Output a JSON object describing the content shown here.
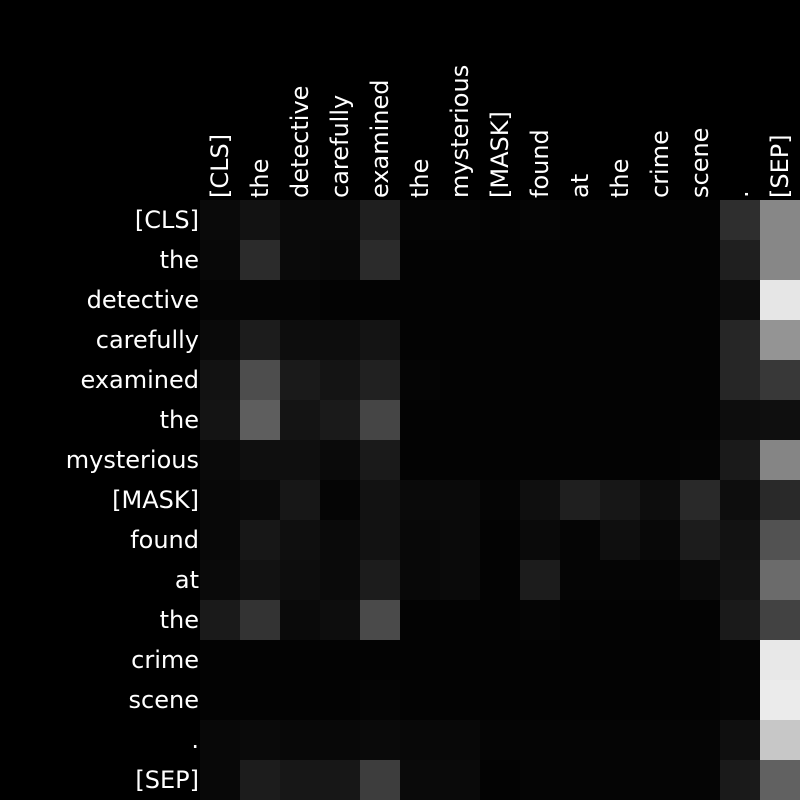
{
  "chart_data": {
    "type": "heatmap",
    "colormap": "grayscale",
    "value_range": [
      0,
      1
    ],
    "x_tokens": [
      "[CLS]",
      "the",
      "detective",
      "carefully",
      "examined",
      "the",
      "mysterious",
      "[MASK]",
      "found",
      "at",
      "the",
      "crime",
      "scene",
      ".",
      "[SEP]"
    ],
    "y_tokens": [
      "[CLS]",
      "the",
      "detective",
      "carefully",
      "examined",
      "the",
      "mysterious",
      "[MASK]",
      "found",
      "at",
      "the",
      "crime",
      "scene",
      ".",
      "[SEP]"
    ],
    "values": [
      [
        0.04,
        0.07,
        0.04,
        0.04,
        0.12,
        0.02,
        0.02,
        0.01,
        0.02,
        0.01,
        0.01,
        0.01,
        0.01,
        0.18,
        0.53
      ],
      [
        0.03,
        0.17,
        0.04,
        0.03,
        0.17,
        0.01,
        0.01,
        0.01,
        0.01,
        0.01,
        0.01,
        0.01,
        0.01,
        0.12,
        0.53
      ],
      [
        0.02,
        0.02,
        0.02,
        0.01,
        0.01,
        0.01,
        0.01,
        0.01,
        0.01,
        0.01,
        0.01,
        0.01,
        0.01,
        0.05,
        0.9
      ],
      [
        0.04,
        0.11,
        0.05,
        0.05,
        0.08,
        0.01,
        0.01,
        0.01,
        0.01,
        0.01,
        0.01,
        0.01,
        0.01,
        0.15,
        0.58
      ],
      [
        0.07,
        0.3,
        0.1,
        0.08,
        0.13,
        0.02,
        0.01,
        0.01,
        0.01,
        0.01,
        0.01,
        0.01,
        0.01,
        0.15,
        0.22
      ],
      [
        0.08,
        0.37,
        0.08,
        0.1,
        0.27,
        0.01,
        0.01,
        0.01,
        0.01,
        0.01,
        0.01,
        0.01,
        0.01,
        0.05,
        0.06
      ],
      [
        0.04,
        0.06,
        0.06,
        0.04,
        0.1,
        0.01,
        0.01,
        0.01,
        0.01,
        0.01,
        0.01,
        0.01,
        0.02,
        0.1,
        0.52
      ],
      [
        0.03,
        0.04,
        0.09,
        0.02,
        0.07,
        0.04,
        0.04,
        0.02,
        0.06,
        0.12,
        0.09,
        0.05,
        0.16,
        0.05,
        0.16
      ],
      [
        0.03,
        0.09,
        0.06,
        0.04,
        0.07,
        0.03,
        0.04,
        0.01,
        0.04,
        0.02,
        0.06,
        0.03,
        0.11,
        0.07,
        0.32
      ],
      [
        0.04,
        0.07,
        0.05,
        0.04,
        0.11,
        0.03,
        0.04,
        0.01,
        0.11,
        0.02,
        0.02,
        0.02,
        0.04,
        0.08,
        0.42
      ],
      [
        0.1,
        0.2,
        0.04,
        0.05,
        0.29,
        0.01,
        0.01,
        0.01,
        0.02,
        0.01,
        0.01,
        0.01,
        0.01,
        0.1,
        0.26
      ],
      [
        0.01,
        0.01,
        0.01,
        0.01,
        0.01,
        0.01,
        0.01,
        0.01,
        0.01,
        0.01,
        0.01,
        0.01,
        0.01,
        0.02,
        0.91
      ],
      [
        0.01,
        0.01,
        0.01,
        0.01,
        0.02,
        0.01,
        0.01,
        0.01,
        0.01,
        0.01,
        0.01,
        0.01,
        0.01,
        0.02,
        0.92
      ],
      [
        0.03,
        0.04,
        0.03,
        0.03,
        0.04,
        0.03,
        0.03,
        0.02,
        0.02,
        0.02,
        0.02,
        0.02,
        0.02,
        0.06,
        0.78
      ],
      [
        0.03,
        0.11,
        0.09,
        0.09,
        0.24,
        0.04,
        0.04,
        0.01,
        0.02,
        0.02,
        0.02,
        0.02,
        0.02,
        0.1,
        0.38
      ]
    ],
    "title": "",
    "xlabel": "",
    "ylabel": "",
    "grid": false,
    "legend": "none"
  }
}
